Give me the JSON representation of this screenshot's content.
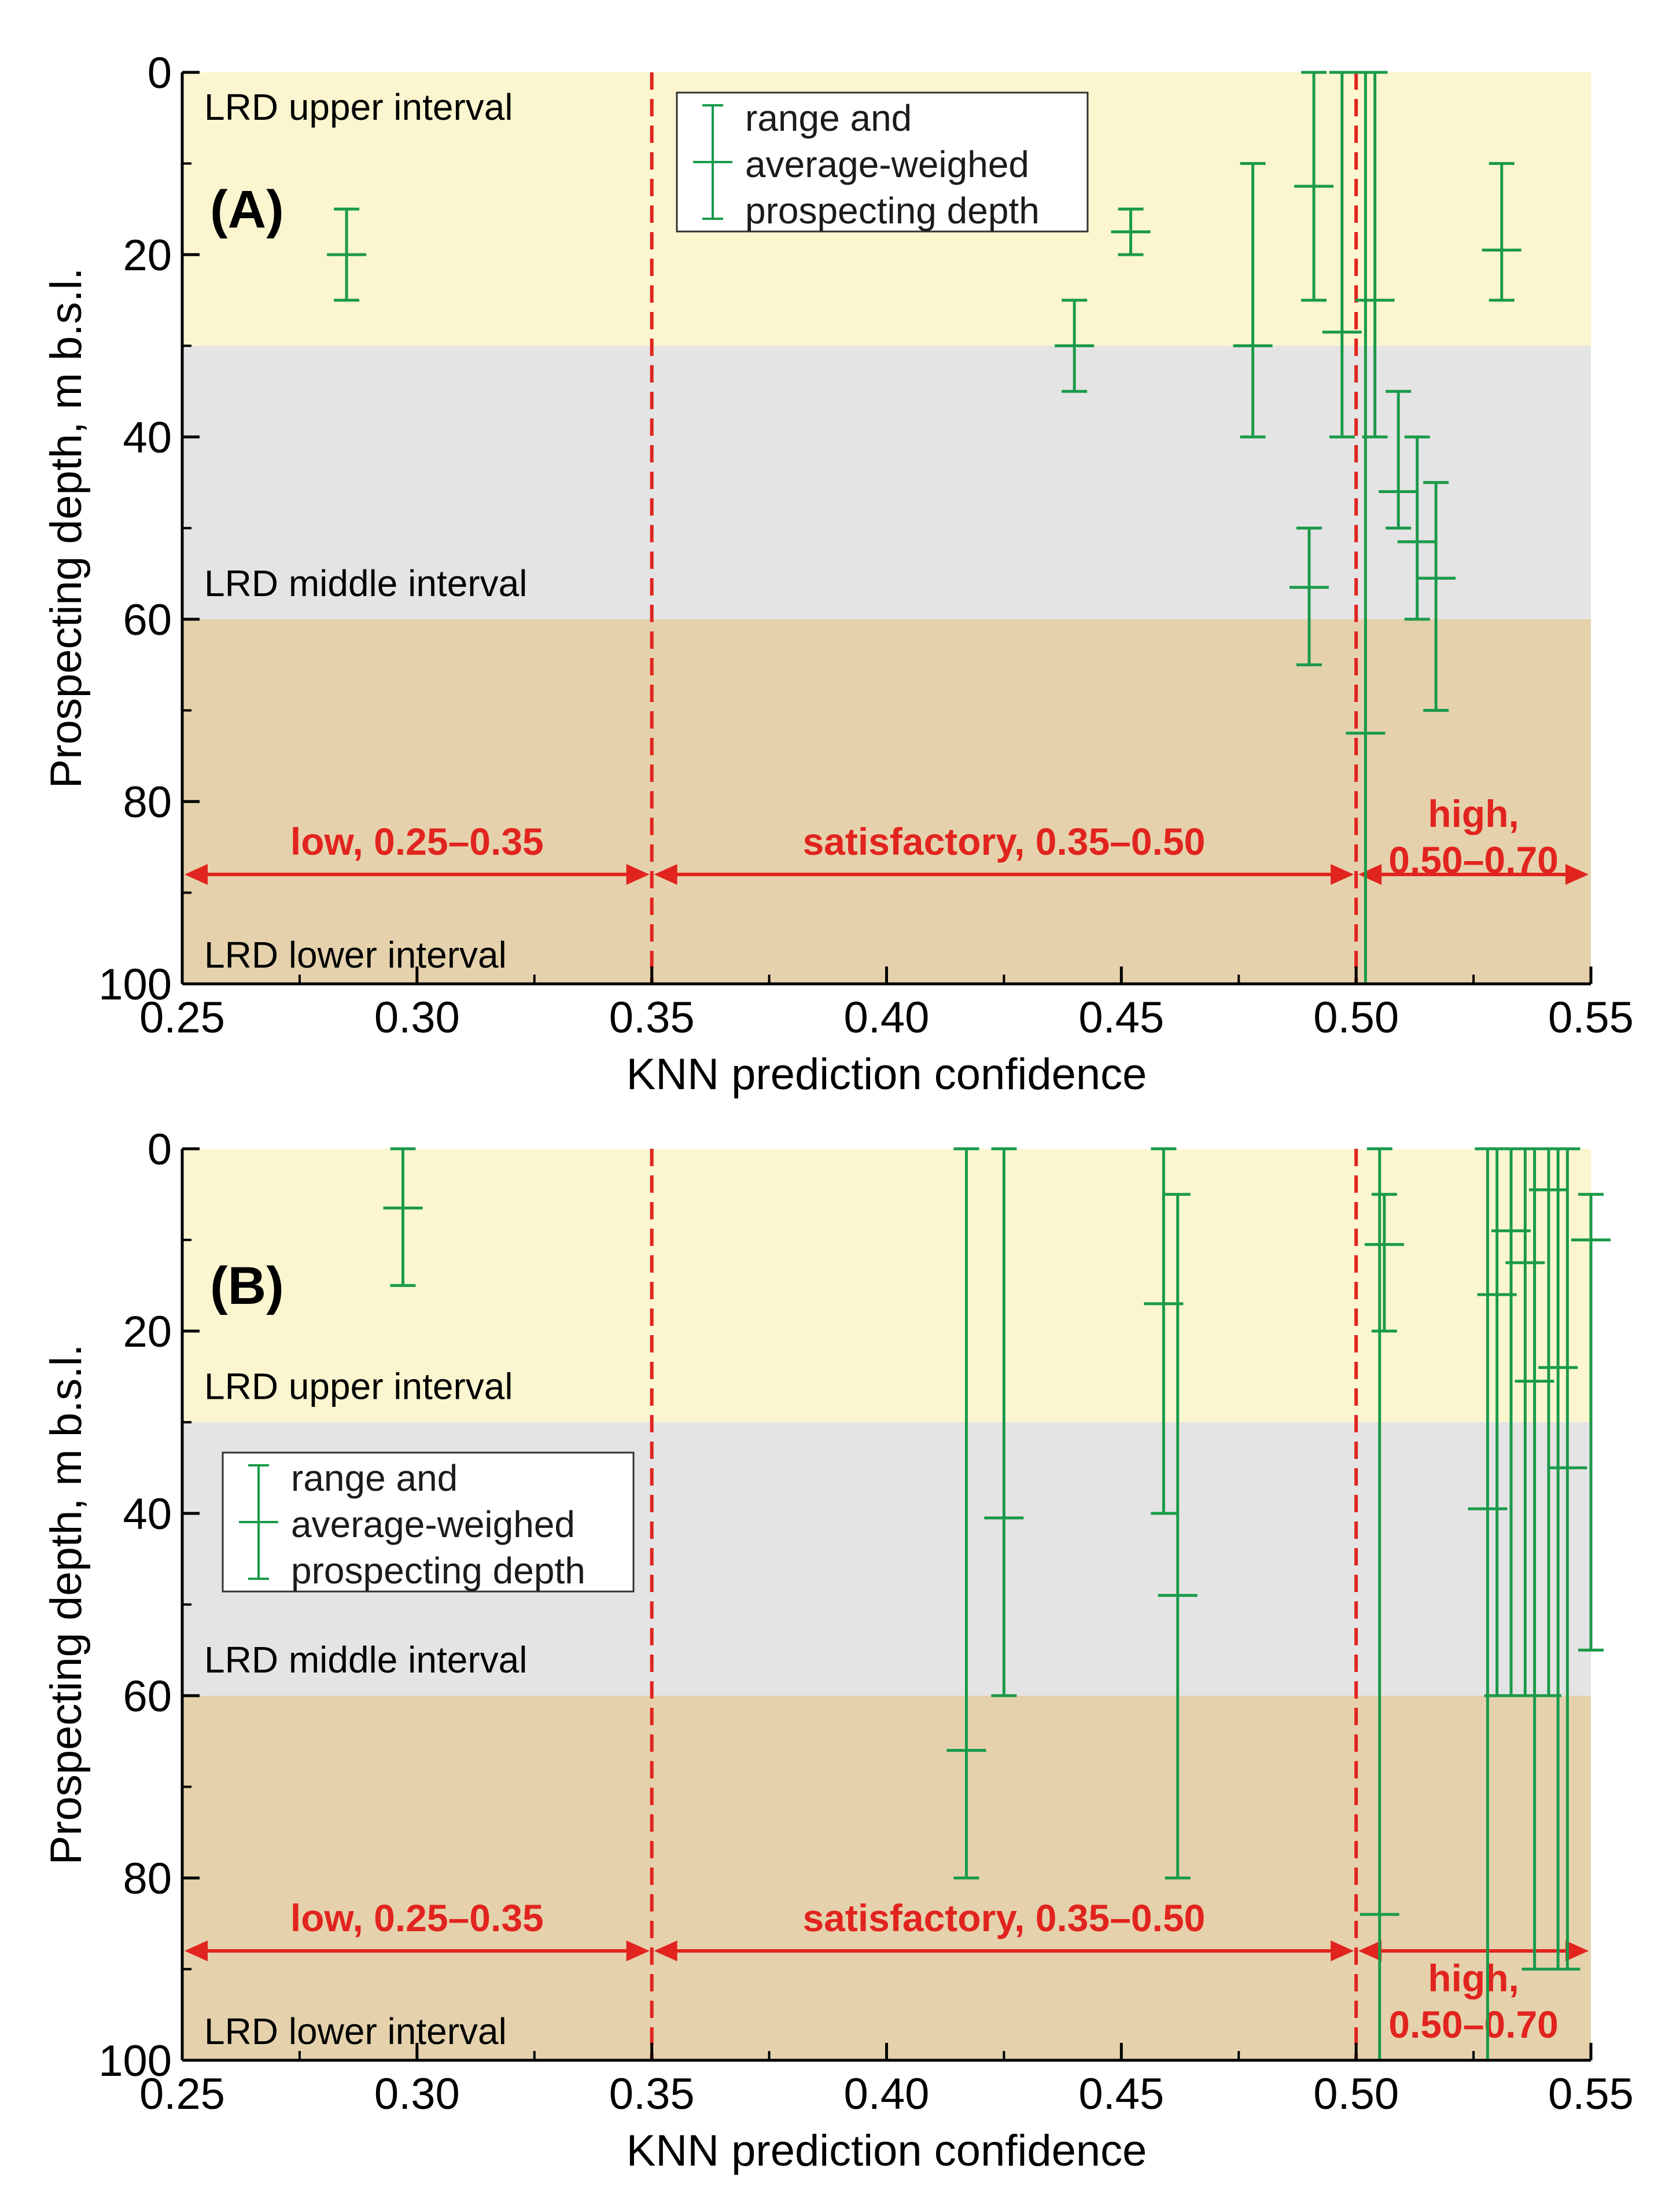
{
  "chart_data": [
    {
      "panel": "A",
      "type": "errorbar",
      "panel_label": "(A)",
      "xlabel": "KNN prediction confidence",
      "ylabel": "Prospecting depth, m b.s.l.",
      "xlim": [
        0.25,
        0.55
      ],
      "ylim": [
        0,
        100
      ],
      "y_inverted": true,
      "x_ticks": [
        "0.25",
        "0.30",
        "0.35",
        "0.40",
        "0.45",
        "0.50",
        "0.55"
      ],
      "y_ticks": [
        "0",
        "20",
        "40",
        "60",
        "80",
        "100"
      ],
      "intervals": [
        {
          "label": "LRD upper interval",
          "from": 0,
          "to": 30,
          "color": "#fbf6d0"
        },
        {
          "label": "LRD middle interval",
          "from": 30,
          "to": 60,
          "color": "#e4e4e4"
        },
        {
          "label": "LRD lower interval",
          "from": 60,
          "to": 100,
          "color": "#e5d2ac"
        }
      ],
      "thresholds": [
        0.35,
        0.5
      ],
      "confidence_classes": [
        {
          "label": "low, 0.25–0.35",
          "from": 0.25,
          "to": 0.35
        },
        {
          "label": "satisfactory, 0.35–0.50",
          "from": 0.35,
          "to": 0.5
        },
        {
          "label": "high,",
          "label2": "0.50–0.70",
          "from": 0.5,
          "to": 0.55
        }
      ],
      "arrow_depth": 88,
      "legend": {
        "line1": "range and",
        "line2": "average-weighed",
        "line3": "prospecting depth",
        "position": "top-center"
      },
      "points": [
        {
          "x": 0.285,
          "min": 15,
          "max": 25,
          "avg": 20
        },
        {
          "x": 0.44,
          "min": 25,
          "max": 35,
          "avg": 30
        },
        {
          "x": 0.452,
          "min": 15,
          "max": 20,
          "avg": 17.5
        },
        {
          "x": 0.478,
          "min": 10,
          "max": 40,
          "avg": 30
        },
        {
          "x": 0.491,
          "min": 0,
          "max": 25,
          "avg": 12.5
        },
        {
          "x": 0.49,
          "min": 50,
          "max": 65,
          "avg": 56.5
        },
        {
          "x": 0.497,
          "min": 0,
          "max": 40,
          "avg": 28.5
        },
        {
          "x": 0.502,
          "min": 0,
          "max": 100,
          "avg": 72.5
        },
        {
          "x": 0.504,
          "min": 0,
          "max": 40,
          "avg": 25
        },
        {
          "x": 0.509,
          "min": 35,
          "max": 50,
          "avg": 46
        },
        {
          "x": 0.513,
          "min": 40,
          "max": 60,
          "avg": 51.5
        },
        {
          "x": 0.517,
          "min": 45,
          "max": 70,
          "avg": 55.5
        },
        {
          "x": 0.531,
          "min": 10,
          "max": 25,
          "avg": 19.5
        }
      ]
    },
    {
      "panel": "B",
      "type": "errorbar",
      "panel_label": "(B)",
      "xlabel": "KNN prediction confidence",
      "ylabel": "Prospecting depth, m b.s.l.",
      "xlim": [
        0.25,
        0.55
      ],
      "ylim": [
        0,
        100
      ],
      "y_inverted": true,
      "x_ticks": [
        "0.25",
        "0.30",
        "0.35",
        "0.40",
        "0.45",
        "0.50",
        "0.55"
      ],
      "y_ticks": [
        "0",
        "20",
        "40",
        "60",
        "80",
        "100"
      ],
      "intervals": [
        {
          "label": "LRD upper interval",
          "from": 0,
          "to": 30,
          "color": "#fbf6d0"
        },
        {
          "label": "LRD middle interval",
          "from": 30,
          "to": 60,
          "color": "#e4e4e4"
        },
        {
          "label": "LRD lower interval",
          "from": 60,
          "to": 100,
          "color": "#e5d2ac"
        }
      ],
      "thresholds": [
        0.35,
        0.5
      ],
      "confidence_classes": [
        {
          "label": "low, 0.25–0.35",
          "from": 0.25,
          "to": 0.35
        },
        {
          "label": "satisfactory, 0.35–0.50",
          "from": 0.35,
          "to": 0.5
        },
        {
          "label": "high,",
          "label2": "0.50–0.70",
          "from": 0.5,
          "to": 0.55
        }
      ],
      "arrow_depth": 88,
      "legend": {
        "line1": "range and",
        "line2": "average-weighed",
        "line3": "prospecting depth",
        "position": "middle-left"
      },
      "points": [
        {
          "x": 0.297,
          "min": 0,
          "max": 15,
          "avg": 6.5
        },
        {
          "x": 0.417,
          "min": 0,
          "max": 80,
          "avg": 66
        },
        {
          "x": 0.425,
          "min": 0,
          "max": 60,
          "avg": 40.5
        },
        {
          "x": 0.459,
          "min": 0,
          "max": 40,
          "avg": 17
        },
        {
          "x": 0.462,
          "min": 5,
          "max": 80,
          "avg": 49
        },
        {
          "x": 0.505,
          "min": 0,
          "max": 100,
          "avg": 84
        },
        {
          "x": 0.506,
          "min": 5,
          "max": 20,
          "avg": 10.5
        },
        {
          "x": 0.528,
          "min": 0,
          "max": 100,
          "avg": 39.5
        },
        {
          "x": 0.53,
          "min": 0,
          "max": 60,
          "avg": 16
        },
        {
          "x": 0.533,
          "min": 0,
          "max": 60,
          "avg": 9
        },
        {
          "x": 0.536,
          "min": 0,
          "max": 60,
          "avg": 12.5
        },
        {
          "x": 0.538,
          "min": 0,
          "max": 90,
          "avg": 25.5
        },
        {
          "x": 0.541,
          "min": 0,
          "max": 60,
          "avg": 4.5
        },
        {
          "x": 0.543,
          "min": 0,
          "max": 90,
          "avg": 24
        },
        {
          "x": 0.545,
          "min": 0,
          "max": 90,
          "avg": 35
        },
        {
          "x": 0.55,
          "min": 5,
          "max": 55,
          "avg": 10
        }
      ]
    }
  ]
}
